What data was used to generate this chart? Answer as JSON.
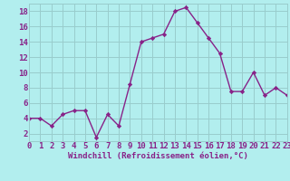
{
  "x": [
    0,
    1,
    2,
    3,
    4,
    5,
    6,
    7,
    8,
    9,
    10,
    11,
    12,
    13,
    14,
    15,
    16,
    17,
    18,
    19,
    20,
    21,
    22,
    23
  ],
  "y": [
    4,
    4,
    3,
    4.5,
    5,
    5,
    1.5,
    4.5,
    3,
    8.5,
    14,
    14.5,
    15,
    18,
    18.5,
    16.5,
    14.5,
    12.5,
    7.5,
    7.5,
    10,
    7,
    8,
    7
  ],
  "line_color": "#882288",
  "marker": "D",
  "marker_size": 2.2,
  "line_width": 1.0,
  "xlabel": "Windchill (Refroidissement éolien,°C)",
  "xlabel_fontsize": 6.5,
  "bg_color": "#b2eeee",
  "grid_color": "#99cccc",
  "tick_label_fontsize": 6.5,
  "tick_color": "#882288",
  "xlim": [
    0,
    23
  ],
  "ylim": [
    1,
    19
  ],
  "yticks": [
    2,
    4,
    6,
    8,
    10,
    12,
    14,
    16,
    18
  ],
  "xticks": [
    0,
    1,
    2,
    3,
    4,
    5,
    6,
    7,
    8,
    9,
    10,
    11,
    12,
    13,
    14,
    15,
    16,
    17,
    18,
    19,
    20,
    21,
    22,
    23
  ]
}
